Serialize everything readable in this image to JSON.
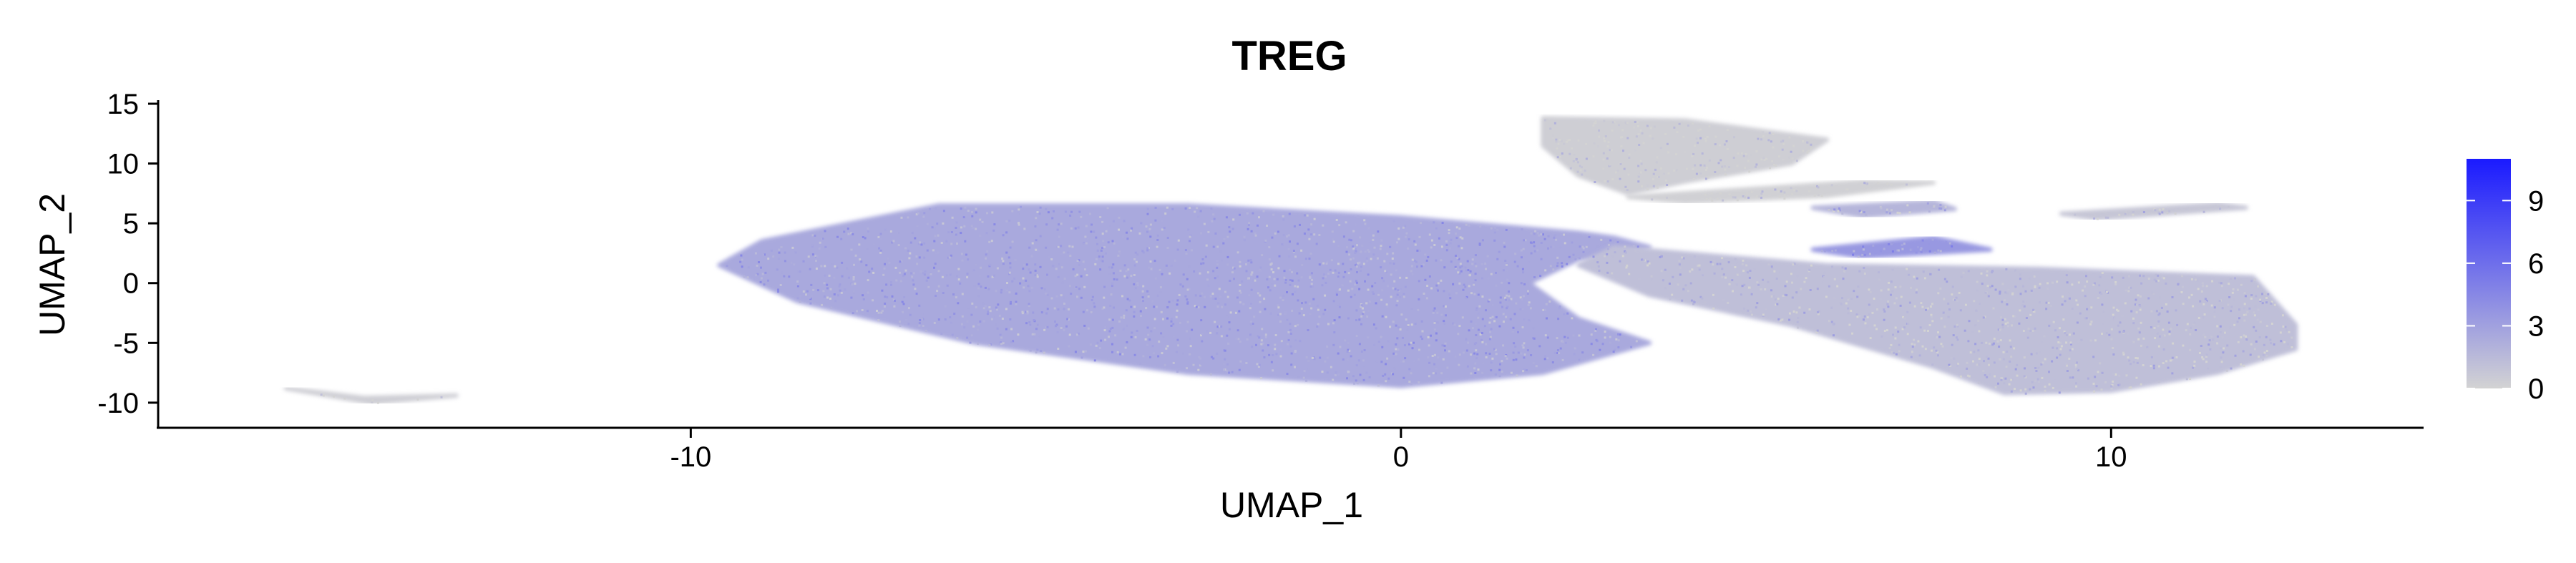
{
  "chart_data": {
    "type": "scatter",
    "title": "TREG",
    "xlabel": "UMAP_1",
    "ylabel": "UMAP_2",
    "xlim": [
      -17.5,
      14.4
    ],
    "ylim": [
      -12.1,
      15.3
    ],
    "x_ticks": [
      -10,
      0,
      10
    ],
    "x_tick_labels": [
      "-10",
      "0",
      "10"
    ],
    "y_ticks": [
      15,
      10,
      5,
      0,
      -5,
      -10
    ],
    "y_tick_labels": [
      "15",
      "10",
      "5",
      "0",
      "-5",
      "-10"
    ],
    "grid": false,
    "legend": {
      "placement": "right",
      "type": "colorbar",
      "range": [
        0,
        11
      ],
      "ticks": [
        0,
        3,
        6,
        9
      ],
      "tick_labels": [
        "0",
        "3",
        "6",
        "9"
      ]
    },
    "colors": {
      "low": "#d3d3d3",
      "high": "#1a1aff",
      "axis": "#000000"
    },
    "regions": [
      {
        "name": "main-body",
        "polygon": [
          [
            -9.6,
            1.5
          ],
          [
            -9.0,
            3.5
          ],
          [
            -6.5,
            6.5
          ],
          [
            -3.0,
            6.5
          ],
          [
            0,
            5.5
          ],
          [
            2.5,
            4.2
          ],
          [
            3.0,
            3.8
          ],
          [
            3.5,
            3.0
          ],
          [
            2.5,
            2.0
          ],
          [
            1.8,
            0.0
          ],
          [
            2.5,
            -3.0
          ],
          [
            3.5,
            -5.0
          ],
          [
            2.0,
            -7.5
          ],
          [
            0,
            -8.6
          ],
          [
            -3.0,
            -7.5
          ],
          [
            -6.0,
            -5.0
          ],
          [
            -8.5,
            -1.5
          ]
        ],
        "level": 2.5
      },
      {
        "name": "right-lobe",
        "polygon": [
          [
            3.0,
            3.0
          ],
          [
            6.0,
            1.5
          ],
          [
            9.0,
            1.2
          ],
          [
            12.0,
            0.5
          ],
          [
            12.6,
            -3.5
          ],
          [
            12.6,
            -5.5
          ],
          [
            11.5,
            -7.5
          ],
          [
            10.0,
            -9.0
          ],
          [
            8.5,
            -9.2
          ],
          [
            7.5,
            -7.0
          ],
          [
            5.5,
            -3.5
          ],
          [
            3.5,
            -1.0
          ],
          [
            2.5,
            1.5
          ]
        ],
        "level": 1.2
      },
      {
        "name": "top-island",
        "polygon": [
          [
            2.0,
            13.8
          ],
          [
            4.0,
            13.6
          ],
          [
            6.0,
            12.0
          ],
          [
            5.5,
            10.0
          ],
          [
            4.0,
            8.5
          ],
          [
            3.2,
            7.5
          ],
          [
            2.5,
            9.0
          ],
          [
            2.0,
            11.5
          ]
        ],
        "level": 0.3
      },
      {
        "name": "upper-streak",
        "polygon": [
          [
            3.2,
            7.2
          ],
          [
            6.5,
            8.5
          ],
          [
            7.5,
            8.4
          ],
          [
            6.0,
            7.3
          ],
          [
            4.0,
            6.8
          ]
        ],
        "level": 0.2
      },
      {
        "name": "mid-streak",
        "polygon": [
          [
            5.8,
            6.3
          ],
          [
            7.5,
            6.8
          ],
          [
            7.8,
            6.2
          ],
          [
            6.5,
            5.6
          ]
        ],
        "level": 1.8
      },
      {
        "name": "far-streak",
        "polygon": [
          [
            9.3,
            5.8
          ],
          [
            11.5,
            6.6
          ],
          [
            11.9,
            6.3
          ],
          [
            9.8,
            5.4
          ]
        ],
        "level": 0.8
      },
      {
        "name": "blue-streak",
        "polygon": [
          [
            5.8,
            2.8
          ],
          [
            7.5,
            3.8
          ],
          [
            8.3,
            2.8
          ],
          [
            6.5,
            2.2
          ]
        ],
        "level": 3.5
      },
      {
        "name": "isolated-arc",
        "polygon": [
          [
            -15.7,
            -8.8
          ],
          [
            -14.5,
            -10.0
          ],
          [
            -13.3,
            -9.4
          ],
          [
            -14.6,
            -9.6
          ]
        ],
        "level": 0.3
      }
    ]
  }
}
